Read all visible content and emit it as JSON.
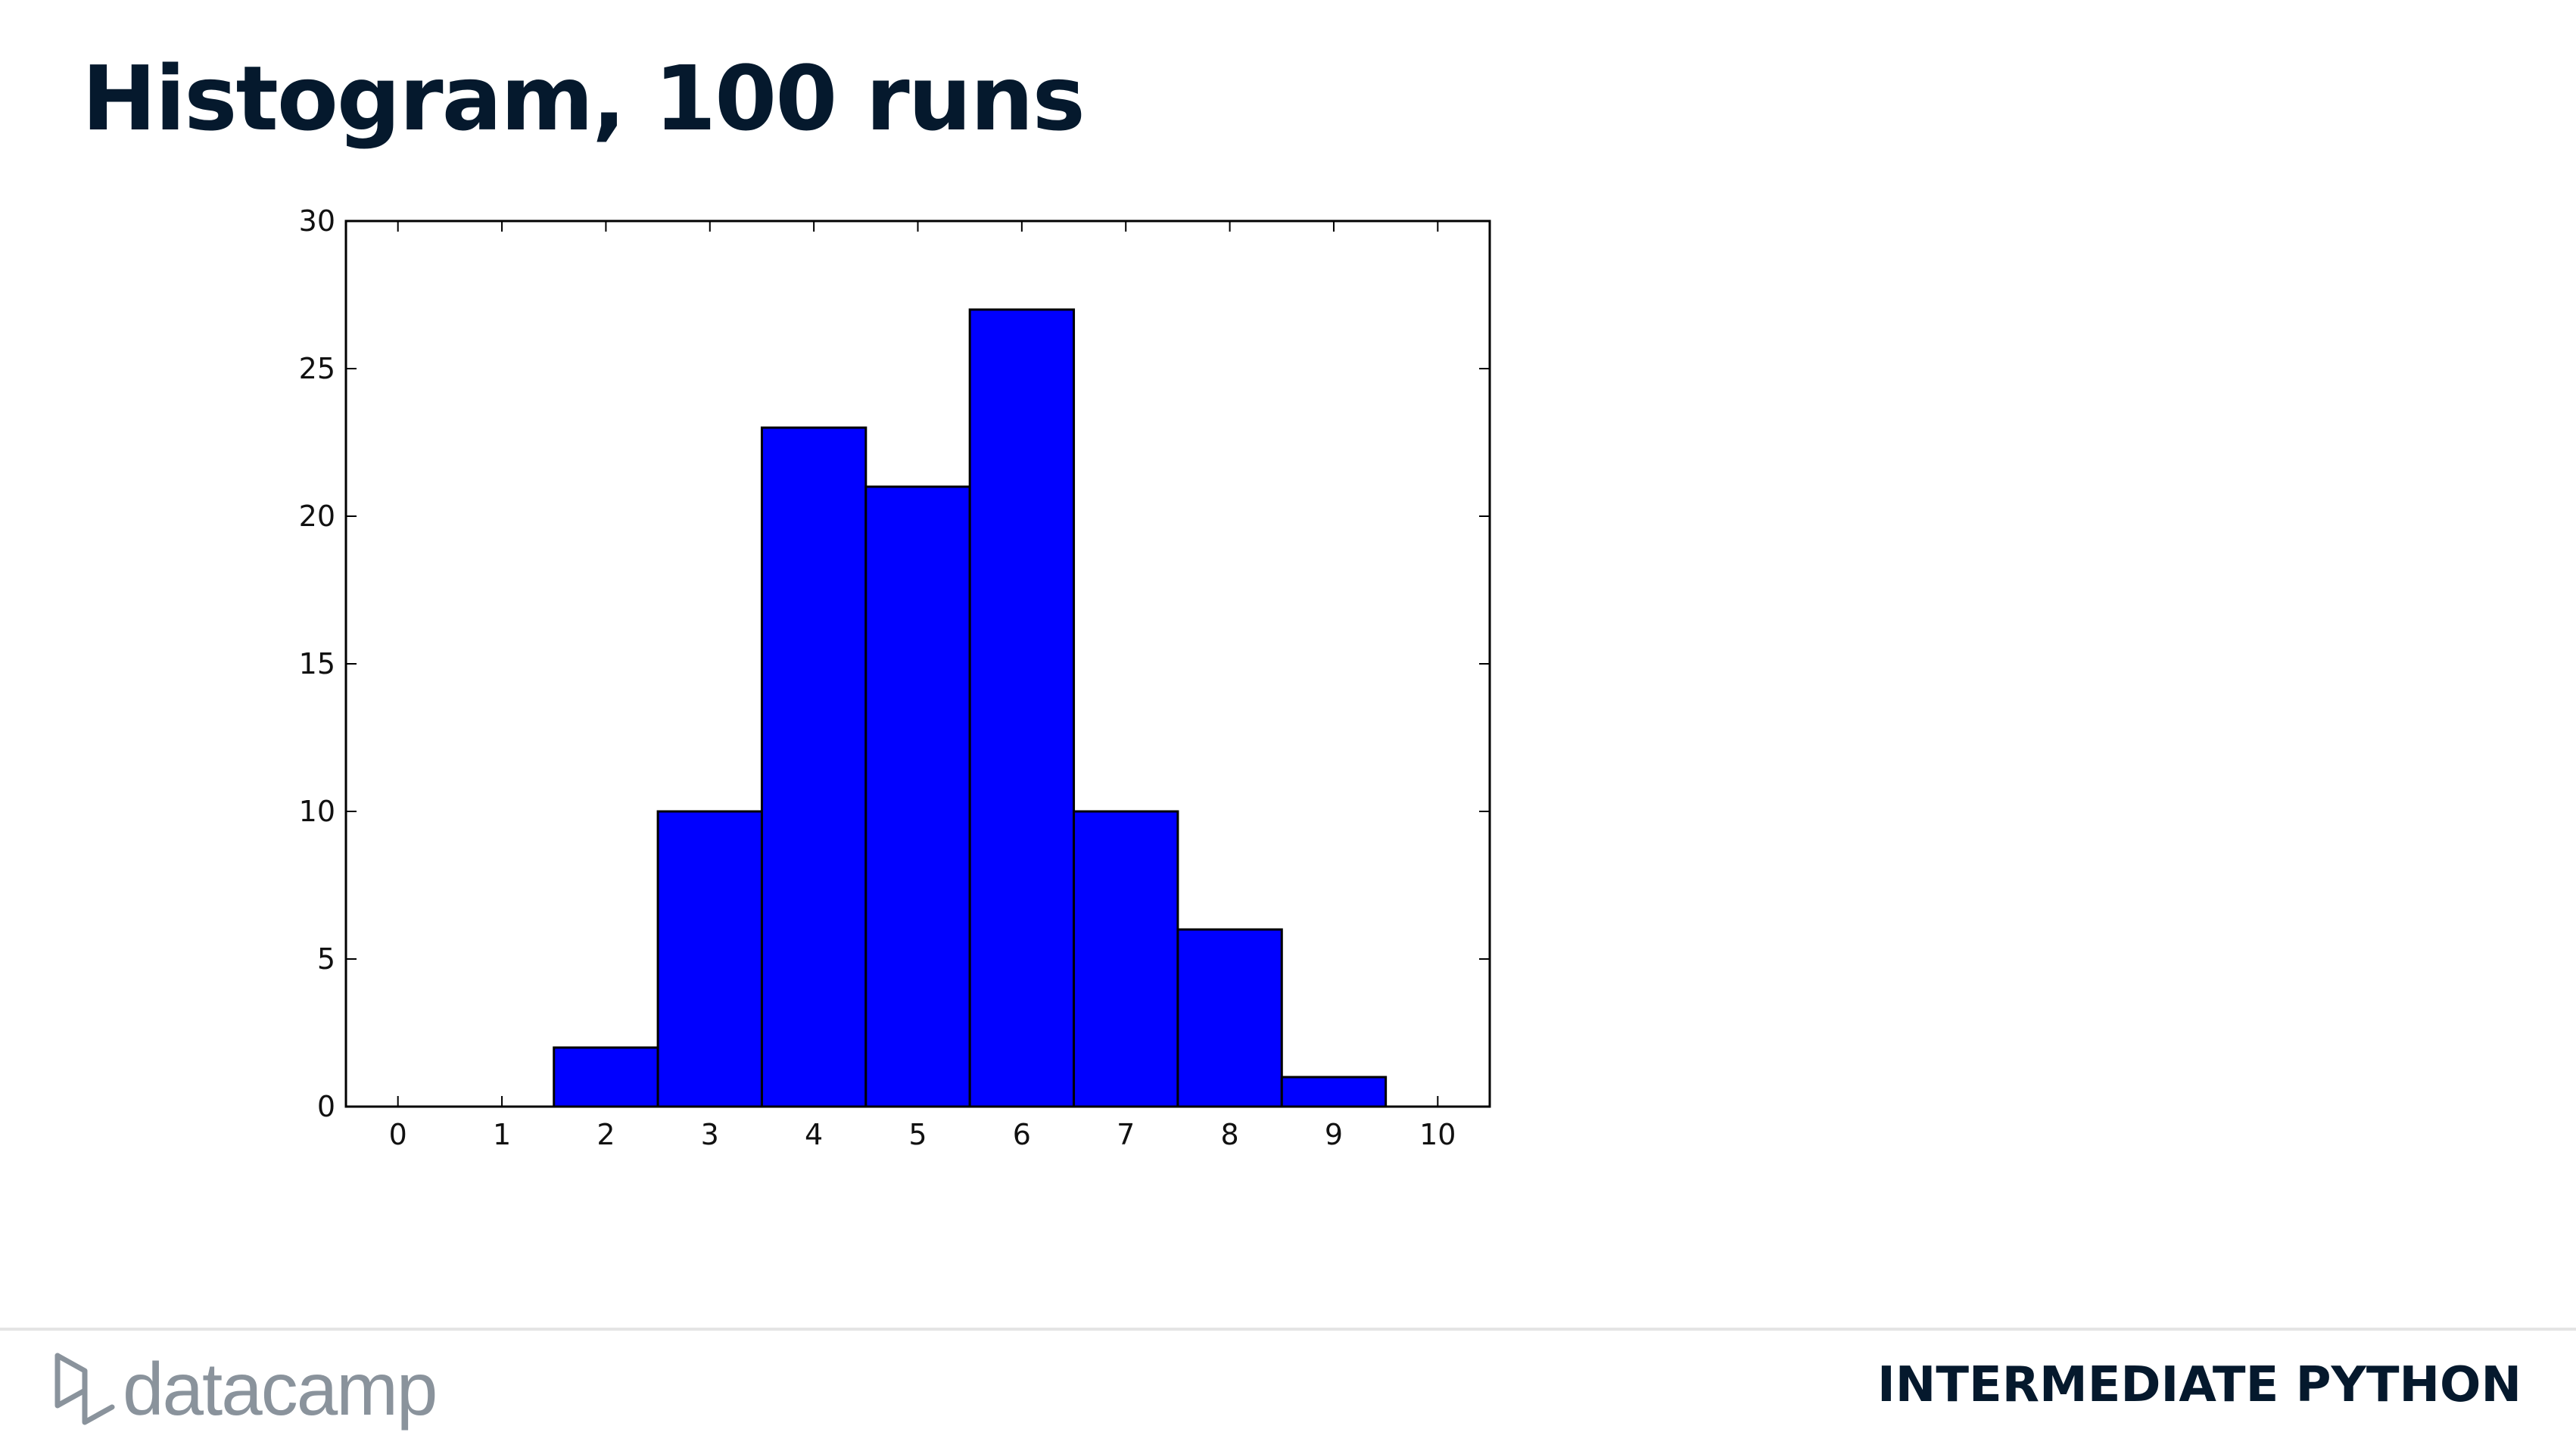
{
  "slide": {
    "title": "Histogram, 100 runs"
  },
  "footer": {
    "logo_text": "datacamp",
    "logo_icon": "datacamp-logo-icon",
    "course_title": "INTERMEDIATE PYTHON",
    "logo_color": "#8a939c",
    "text_color": "#05192d"
  },
  "chart_data": {
    "type": "bar",
    "title": "",
    "xlabel": "",
    "ylabel": "",
    "bin_centers": [
      0,
      1,
      2,
      3,
      4,
      5,
      6,
      7,
      8,
      9
    ],
    "values": [
      0,
      0,
      2,
      10,
      23,
      21,
      27,
      10,
      6,
      1
    ],
    "bin_width": 1,
    "xlim": [
      -0.5,
      10.5
    ],
    "ylim": [
      0,
      30
    ],
    "x_ticks": [
      0,
      1,
      2,
      3,
      4,
      5,
      6,
      7,
      8,
      9,
      10
    ],
    "y_ticks": [
      0,
      5,
      10,
      15,
      20,
      25,
      30
    ],
    "grid": false,
    "bar_color": "#0000ff",
    "edge_color": "#000000"
  }
}
